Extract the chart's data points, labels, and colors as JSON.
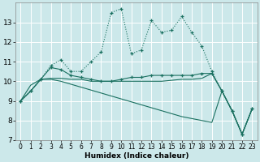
{
  "xlabel": "Humidex (Indice chaleur)",
  "background_color": "#cce8ea",
  "grid_color": "#b0d0d4",
  "line_color": "#1a7060",
  "xlim": [
    -0.5,
    23.5
  ],
  "ylim": [
    7,
    14
  ],
  "xticks": [
    0,
    1,
    2,
    3,
    4,
    5,
    6,
    7,
    8,
    9,
    10,
    11,
    12,
    13,
    14,
    15,
    16,
    17,
    18,
    19,
    20,
    21,
    22,
    23
  ],
  "yticks": [
    7,
    8,
    9,
    10,
    11,
    12,
    13
  ],
  "series_dotted": [
    9.0,
    9.5,
    10.1,
    10.8,
    11.1,
    10.5,
    10.5,
    11.0,
    11.5,
    13.5,
    13.7,
    11.4,
    11.6,
    13.1,
    12.5,
    12.6,
    13.3,
    12.5,
    11.8,
    10.5,
    9.5,
    8.5,
    7.3,
    8.6
  ],
  "series_marked": [
    9.0,
    9.5,
    10.1,
    10.7,
    10.6,
    10.3,
    10.2,
    10.1,
    10.0,
    10.0,
    10.1,
    10.2,
    10.2,
    10.3,
    10.3,
    10.3,
    10.3,
    10.3,
    10.4,
    10.4,
    9.5,
    8.5,
    7.3,
    8.6
  ],
  "series_flat1": [
    9.0,
    9.8,
    10.1,
    10.15,
    10.15,
    10.1,
    10.1,
    10.0,
    10.0,
    10.0,
    10.0,
    10.0,
    10.0,
    10.0,
    10.0,
    10.05,
    10.1,
    10.1,
    10.15,
    10.4,
    9.5,
    8.5,
    7.3,
    8.6
  ],
  "series_decline": [
    9.0,
    9.5,
    10.1,
    10.1,
    10.0,
    9.85,
    9.7,
    9.55,
    9.4,
    9.25,
    9.1,
    8.95,
    8.8,
    8.65,
    8.5,
    8.35,
    8.2,
    8.1,
    8.0,
    7.9,
    9.5,
    8.5,
    7.3,
    8.6
  ]
}
